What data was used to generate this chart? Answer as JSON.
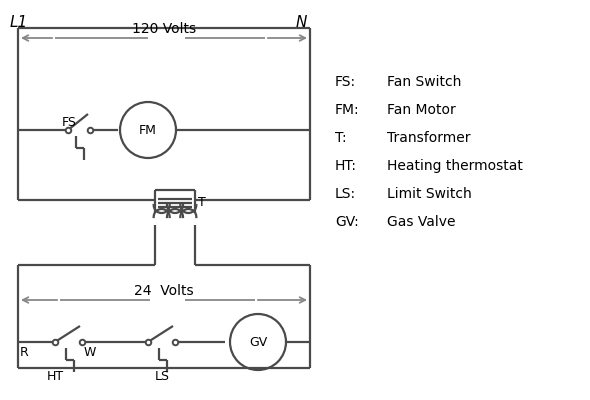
{
  "bg_color": "#ffffff",
  "line_color": "#4a4a4a",
  "text_color": "#000000",
  "arrow_color": "#888888",
  "legend_keys": [
    "FS:",
    "FM:",
    "T:",
    "HT:",
    "LS:",
    "GV:"
  ],
  "legend_vals": [
    "Fan Switch",
    "Fan Motor",
    "Transformer",
    "Heating thermostat",
    "Limit Switch",
    "Gas Valve"
  ],
  "lw": 1.6,
  "font_size": 10,
  "small_font": 9
}
